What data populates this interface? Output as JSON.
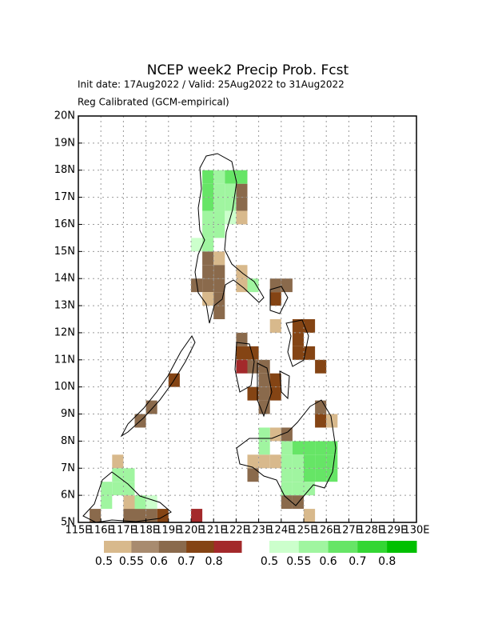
{
  "chart_data": {
    "type": "grid-map",
    "title": "NCEP week2 Precip Prob. Fcst",
    "subtitle": "Init date: 17Aug2022 / Valid: 25Aug2022 to 31Aug2022",
    "subtitle2": "Reg Calibrated (GCM-empirical)",
    "xlim": [
      115,
      130
    ],
    "ylim": [
      5,
      20
    ],
    "xticks": [
      {
        "value": 115,
        "label": "115E"
      },
      {
        "value": 116,
        "label": "116E"
      },
      {
        "value": 117,
        "label": "117E"
      },
      {
        "value": 118,
        "label": "118E"
      },
      {
        "value": 119,
        "label": "119E"
      },
      {
        "value": 120,
        "label": "120E"
      },
      {
        "value": 121,
        "label": "121E"
      },
      {
        "value": 122,
        "label": "122E"
      },
      {
        "value": 123,
        "label": "123E"
      },
      {
        "value": 124,
        "label": "124E"
      },
      {
        "value": 125,
        "label": "125E"
      },
      {
        "value": 126,
        "label": "126E"
      },
      {
        "value": 127,
        "label": "127E"
      },
      {
        "value": 128,
        "label": "128E"
      },
      {
        "value": 129,
        "label": "129E"
      },
      {
        "value": 130,
        "label": "130E"
      }
    ],
    "yticks": [
      {
        "value": 5,
        "label": "5N"
      },
      {
        "value": 6,
        "label": "6N"
      },
      {
        "value": 7,
        "label": "7N"
      },
      {
        "value": 8,
        "label": "8N"
      },
      {
        "value": 9,
        "label": "9N"
      },
      {
        "value": 10,
        "label": "10N"
      },
      {
        "value": 11,
        "label": "11N"
      },
      {
        "value": 12,
        "label": "12N"
      },
      {
        "value": 13,
        "label": "13N"
      },
      {
        "value": 14,
        "label": "14N"
      },
      {
        "value": 15,
        "label": "15N"
      },
      {
        "value": 16,
        "label": "16N"
      },
      {
        "value": 17,
        "label": "17N"
      },
      {
        "value": 18,
        "label": "18N"
      },
      {
        "value": 19,
        "label": "19N"
      },
      {
        "value": 20,
        "label": "20N"
      }
    ],
    "grid": true,
    "colorbars": [
      {
        "colors": [
          "#d8b98c",
          "#a88b6f",
          "#8a6a4c",
          "#844414",
          "#a3292b"
        ],
        "labels": [
          0.5,
          0.55,
          0.6,
          0.7,
          0.8
        ],
        "cells": [
          [
            122,
            17,
            0.6
          ],
          [
            122,
            16.5,
            0.6
          ],
          [
            122,
            16,
            0.52
          ],
          [
            120.5,
            14.5,
            0.6
          ],
          [
            121,
            14.5,
            0.52
          ],
          [
            120.5,
            14,
            0.65
          ],
          [
            121,
            14,
            0.6
          ],
          [
            120,
            13.5,
            0.6
          ],
          [
            120.5,
            13.5,
            0.65
          ],
          [
            121,
            13.5,
            0.6
          ],
          [
            121,
            13,
            0.6
          ],
          [
            121,
            12.5,
            0.6
          ],
          [
            120.5,
            13,
            0.52
          ],
          [
            122,
            14,
            0.52
          ],
          [
            122,
            13.5,
            0.52
          ],
          [
            123.5,
            13.5,
            0.65
          ],
          [
            124,
            13.5,
            0.65
          ],
          [
            123.5,
            13,
            0.75
          ],
          [
            124.5,
            12,
            0.75
          ],
          [
            125,
            12,
            0.75
          ],
          [
            124.5,
            11.5,
            0.75
          ],
          [
            124.5,
            11,
            0.75
          ],
          [
            125,
            11,
            0.75
          ],
          [
            123.5,
            12,
            0.52
          ],
          [
            122,
            11.5,
            0.65
          ],
          [
            122,
            11,
            0.75
          ],
          [
            122.5,
            11,
            0.75
          ],
          [
            122,
            10.5,
            0.85
          ],
          [
            122.5,
            10.5,
            0.65
          ],
          [
            123,
            10.5,
            0.65
          ],
          [
            123,
            10,
            0.65
          ],
          [
            123.5,
            10,
            0.75
          ],
          [
            122.5,
            9.5,
            0.75
          ],
          [
            123,
            9.5,
            0.65
          ],
          [
            123,
            9,
            0.65
          ],
          [
            123.5,
            9.5,
            0.75
          ],
          [
            125.5,
            10.5,
            0.75
          ],
          [
            125.5,
            9,
            0.6
          ],
          [
            125.5,
            8.5,
            0.75
          ],
          [
            126,
            8.5,
            0.52
          ],
          [
            123.5,
            8,
            0.52
          ],
          [
            124,
            8,
            0.6
          ],
          [
            122.5,
            7,
            0.52
          ],
          [
            122.5,
            6.5,
            0.6
          ],
          [
            123,
            7,
            0.52
          ],
          [
            123.5,
            7,
            0.52
          ],
          [
            124,
            5.5,
            0.65
          ],
          [
            124.5,
            5.5,
            0.65
          ],
          [
            125,
            5,
            0.52
          ],
          [
            119,
            10,
            0.75
          ],
          [
            118,
            9,
            0.65
          ],
          [
            117.5,
            8.5,
            0.65
          ],
          [
            116.5,
            7,
            0.52
          ],
          [
            117,
            5.5,
            0.52
          ],
          [
            115.5,
            5,
            0.65
          ],
          [
            117,
            5,
            0.65
          ],
          [
            117.5,
            5,
            0.65
          ],
          [
            118,
            5,
            0.65
          ],
          [
            118.5,
            5,
            0.75
          ],
          [
            120,
            5,
            0.85
          ]
        ]
      },
      {
        "colors": [
          "#ccffcc",
          "#a0f5a0",
          "#66e566",
          "#33d633",
          "#00c000"
        ],
        "labels": [
          0.5,
          0.55,
          0.6,
          0.7,
          0.8
        ],
        "cells": [
          [
            120.5,
            17.5,
            0.65
          ],
          [
            121,
            17.5,
            0.55
          ],
          [
            121.5,
            17.5,
            0.65
          ],
          [
            122,
            17.5,
            0.65
          ],
          [
            120.5,
            17,
            0.65
          ],
          [
            121,
            17,
            0.55
          ],
          [
            121.5,
            17,
            0.55
          ],
          [
            120.5,
            16.5,
            0.65
          ],
          [
            121,
            16.5,
            0.55
          ],
          [
            121.5,
            16.5,
            0.55
          ],
          [
            120.5,
            16,
            0.55
          ],
          [
            121,
            16,
            0.55
          ],
          [
            121.5,
            16,
            0.52
          ],
          [
            120.5,
            15.5,
            0.55
          ],
          [
            121,
            15.5,
            0.55
          ],
          [
            120,
            15,
            0.52
          ],
          [
            120.5,
            15,
            0.55
          ],
          [
            122.5,
            13.5,
            0.55
          ],
          [
            124,
            7.5,
            0.55
          ],
          [
            124.5,
            7.5,
            0.6
          ],
          [
            125,
            7.5,
            0.6
          ],
          [
            125.5,
            7.5,
            0.6
          ],
          [
            126,
            7.5,
            0.65
          ],
          [
            124,
            7,
            0.55
          ],
          [
            124.5,
            7,
            0.55
          ],
          [
            125,
            7,
            0.6
          ],
          [
            125.5,
            7,
            0.6
          ],
          [
            126,
            7,
            0.65
          ],
          [
            124,
            6.5,
            0.55
          ],
          [
            124.5,
            6.5,
            0.55
          ],
          [
            125,
            6.5,
            0.6
          ],
          [
            125.5,
            6.5,
            0.65
          ],
          [
            126,
            6.5,
            0.65
          ],
          [
            124,
            6,
            0.55
          ],
          [
            124.5,
            6,
            0.55
          ],
          [
            125,
            6,
            0.55
          ],
          [
            123,
            7.5,
            0.55
          ],
          [
            123,
            8,
            0.55
          ],
          [
            116,
            6,
            0.55
          ],
          [
            116.5,
            6,
            0.55
          ],
          [
            116.5,
            6.5,
            0.55
          ],
          [
            117,
            6.5,
            0.55
          ],
          [
            117,
            6,
            0.55
          ],
          [
            117.5,
            5.5,
            0.55
          ],
          [
            118,
            5.5,
            0.52
          ],
          [
            116,
            5.5,
            0.55
          ]
        ]
      }
    ]
  }
}
